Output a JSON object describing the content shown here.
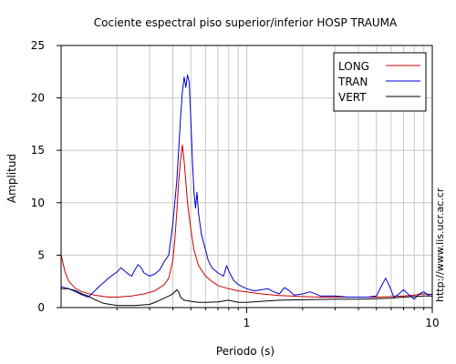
{
  "chart_data": {
    "type": "line",
    "title": "Cociente espectral piso superior/inferior  HOSP TRAUMA",
    "xlabel": "Periodo (s)",
    "ylabel": "Amplitud",
    "x_scale": "log",
    "xlim": [
      0.1,
      10
    ],
    "ylim": [
      0,
      25
    ],
    "x_ticks": [
      {
        "value": 1,
        "label": "1"
      },
      {
        "value": 10,
        "label": "10"
      }
    ],
    "y_ticks": [
      0,
      5,
      10,
      15,
      20,
      25
    ],
    "grid": true,
    "legend_position": "top-right",
    "watermark": "http://www.lis.ucr.ac.cr",
    "series": [
      {
        "name": "LONG",
        "color": "#cc0000",
        "points": [
          [
            0.1,
            5.0
          ],
          [
            0.105,
            3.4
          ],
          [
            0.11,
            2.5
          ],
          [
            0.12,
            1.8
          ],
          [
            0.13,
            1.5
          ],
          [
            0.15,
            1.2
          ],
          [
            0.18,
            1.0
          ],
          [
            0.2,
            1.0
          ],
          [
            0.24,
            1.1
          ],
          [
            0.28,
            1.3
          ],
          [
            0.32,
            1.6
          ],
          [
            0.36,
            2.2
          ],
          [
            0.38,
            2.8
          ],
          [
            0.4,
            4.5
          ],
          [
            0.41,
            6.5
          ],
          [
            0.42,
            9.0
          ],
          [
            0.43,
            12.0
          ],
          [
            0.44,
            14.0
          ],
          [
            0.45,
            15.5
          ],
          [
            0.46,
            14.0
          ],
          [
            0.47,
            12.0
          ],
          [
            0.48,
            10.0
          ],
          [
            0.5,
            7.5
          ],
          [
            0.52,
            5.5
          ],
          [
            0.55,
            4.0
          ],
          [
            0.6,
            3.0
          ],
          [
            0.65,
            2.5
          ],
          [
            0.7,
            2.1
          ],
          [
            0.8,
            1.8
          ],
          [
            0.9,
            1.6
          ],
          [
            1.0,
            1.5
          ],
          [
            1.2,
            1.3
          ],
          [
            1.5,
            1.15
          ],
          [
            2.0,
            1.05
          ],
          [
            2.5,
            1.0
          ],
          [
            3.0,
            1.0
          ],
          [
            4.0,
            1.0
          ],
          [
            5.0,
            1.0
          ],
          [
            6.0,
            1.05
          ],
          [
            7.0,
            1.1
          ],
          [
            8.0,
            1.2
          ],
          [
            9.0,
            1.3
          ],
          [
            10.0,
            1.25
          ]
        ]
      },
      {
        "name": "TRAN",
        "color": "#0000cc",
        "points": [
          [
            0.1,
            2.0
          ],
          [
            0.11,
            1.8
          ],
          [
            0.12,
            1.5
          ],
          [
            0.13,
            1.2
          ],
          [
            0.14,
            1.0
          ],
          [
            0.15,
            1.5
          ],
          [
            0.16,
            2.0
          ],
          [
            0.17,
            2.4
          ],
          [
            0.18,
            2.8
          ],
          [
            0.2,
            3.4
          ],
          [
            0.21,
            3.8
          ],
          [
            0.22,
            3.5
          ],
          [
            0.23,
            3.2
          ],
          [
            0.24,
            3.0
          ],
          [
            0.25,
            3.6
          ],
          [
            0.26,
            4.1
          ],
          [
            0.27,
            3.8
          ],
          [
            0.28,
            3.3
          ],
          [
            0.3,
            3.0
          ],
          [
            0.32,
            3.2
          ],
          [
            0.34,
            3.6
          ],
          [
            0.36,
            4.4
          ],
          [
            0.38,
            5.0
          ],
          [
            0.4,
            8.0
          ],
          [
            0.42,
            12.0
          ],
          [
            0.43,
            15.0
          ],
          [
            0.44,
            18.0
          ],
          [
            0.45,
            20.5
          ],
          [
            0.46,
            22.0
          ],
          [
            0.47,
            21.0
          ],
          [
            0.48,
            22.2
          ],
          [
            0.49,
            21.5
          ],
          [
            0.5,
            18.0
          ],
          [
            0.51,
            14.0
          ],
          [
            0.52,
            11.0
          ],
          [
            0.53,
            9.5
          ],
          [
            0.54,
            11.0
          ],
          [
            0.55,
            9.0
          ],
          [
            0.57,
            7.0
          ],
          [
            0.6,
            5.5
          ],
          [
            0.62,
            4.5
          ],
          [
            0.65,
            3.8
          ],
          [
            0.7,
            3.3
          ],
          [
            0.75,
            3.0
          ],
          [
            0.78,
            4.0
          ],
          [
            0.8,
            3.5
          ],
          [
            0.85,
            2.6
          ],
          [
            0.9,
            2.2
          ],
          [
            1.0,
            1.8
          ],
          [
            1.1,
            1.6
          ],
          [
            1.2,
            1.7
          ],
          [
            1.3,
            1.8
          ],
          [
            1.4,
            1.5
          ],
          [
            1.5,
            1.3
          ],
          [
            1.6,
            1.9
          ],
          [
            1.7,
            1.6
          ],
          [
            1.8,
            1.2
          ],
          [
            2.0,
            1.3
          ],
          [
            2.2,
            1.5
          ],
          [
            2.5,
            1.1
          ],
          [
            3.0,
            1.1
          ],
          [
            3.5,
            1.0
          ],
          [
            4.0,
            1.0
          ],
          [
            4.5,
            1.0
          ],
          [
            5.0,
            1.1
          ],
          [
            5.3,
            2.0
          ],
          [
            5.6,
            2.8
          ],
          [
            5.9,
            2.0
          ],
          [
            6.2,
            1.0
          ],
          [
            6.5,
            1.2
          ],
          [
            7.0,
            1.7
          ],
          [
            7.5,
            1.2
          ],
          [
            8.0,
            0.8
          ],
          [
            8.5,
            1.3
          ],
          [
            9.0,
            1.5
          ],
          [
            9.5,
            1.2
          ],
          [
            10.0,
            1.3
          ]
        ]
      },
      {
        "name": "VERT",
        "color": "#000000",
        "points": [
          [
            0.1,
            1.8
          ],
          [
            0.11,
            1.8
          ],
          [
            0.12,
            1.6
          ],
          [
            0.13,
            1.3
          ],
          [
            0.14,
            1.1
          ],
          [
            0.15,
            0.8
          ],
          [
            0.17,
            0.4
          ],
          [
            0.2,
            0.2
          ],
          [
            0.25,
            0.2
          ],
          [
            0.3,
            0.3
          ],
          [
            0.33,
            0.6
          ],
          [
            0.36,
            0.9
          ],
          [
            0.38,
            1.1
          ],
          [
            0.4,
            1.3
          ],
          [
            0.42,
            1.7
          ],
          [
            0.43,
            1.5
          ],
          [
            0.44,
            1.0
          ],
          [
            0.46,
            0.7
          ],
          [
            0.5,
            0.6
          ],
          [
            0.55,
            0.5
          ],
          [
            0.6,
            0.5
          ],
          [
            0.7,
            0.55
          ],
          [
            0.8,
            0.7
          ],
          [
            0.9,
            0.5
          ],
          [
            1.0,
            0.5
          ],
          [
            1.2,
            0.6
          ],
          [
            1.5,
            0.7
          ],
          [
            2.0,
            0.75
          ],
          [
            3.0,
            0.8
          ],
          [
            4.0,
            0.8
          ],
          [
            5.0,
            0.85
          ],
          [
            6.0,
            0.9
          ],
          [
            7.0,
            1.0
          ],
          [
            8.0,
            1.05
          ],
          [
            9.0,
            1.1
          ],
          [
            10.0,
            1.1
          ]
        ]
      }
    ]
  }
}
